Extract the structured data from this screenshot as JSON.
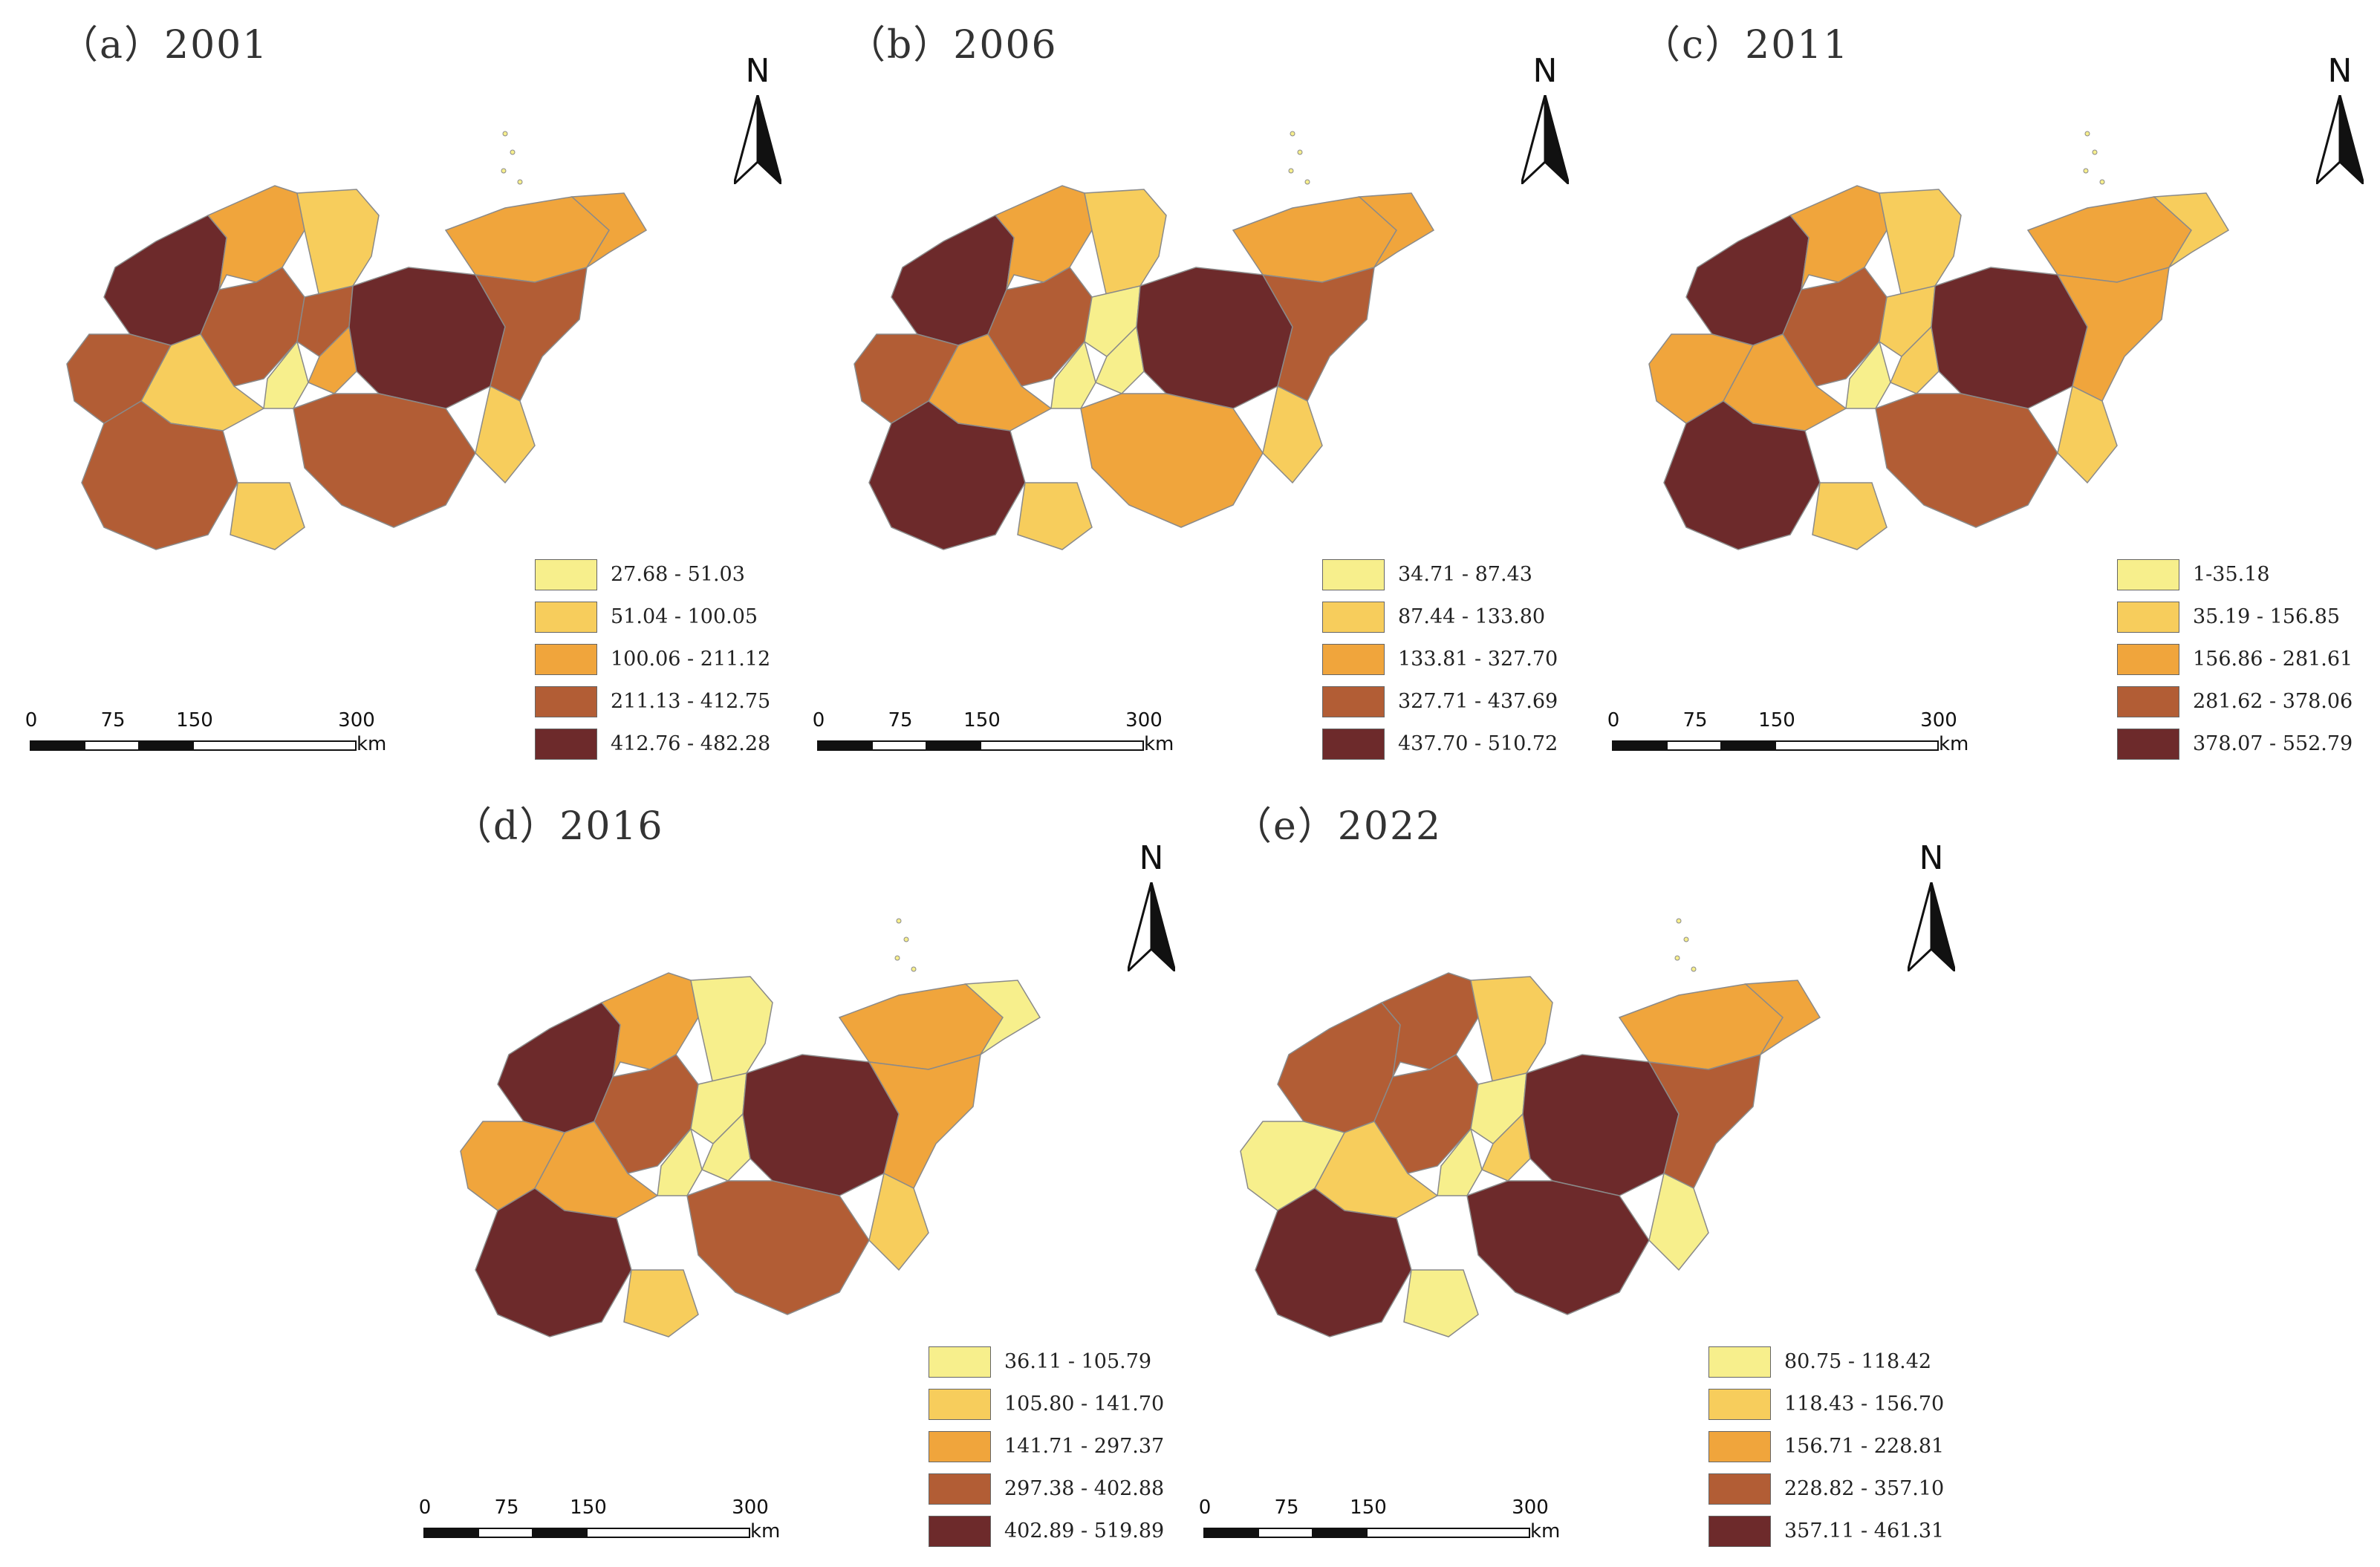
{
  "common": {
    "north_label": "N",
    "scale": {
      "ticks": [
        "0",
        "75",
        "150",
        "300"
      ],
      "unit": "km"
    }
  },
  "colors": {
    "c1": "#f7ef8c",
    "c2": "#f7cd5c",
    "c3": "#f0a53c",
    "c4": "#b25d35",
    "c5": "#6d2a2b",
    "outline": "#8a8a8a"
  },
  "panels": [
    {
      "title": "（a）2001",
      "legend": [
        "27.68 - 51.03",
        "51.04 - 100.05",
        "100.06 - 211.12",
        "211.13 - 412.75",
        "412.76 - 482.28"
      ],
      "region_classes": [
        5,
        3,
        2,
        3,
        4,
        4,
        3,
        1,
        2,
        5,
        4,
        3,
        4,
        4,
        4,
        2,
        2
      ]
    },
    {
      "title": "（b）2006",
      "legend": [
        "34.71 - 87.43",
        "87.44 - 133.80",
        "133.81 - 327.70",
        "327.71 - 437.69",
        "437.70 - 510.72"
      ],
      "region_classes": [
        5,
        3,
        2,
        3,
        4,
        1,
        1,
        1,
        3,
        5,
        4,
        3,
        4,
        3,
        5,
        2,
        2
      ]
    },
    {
      "title": "（c）2011",
      "legend": [
        "1-35.18",
        "35.19 - 156.85",
        "156.86 - 281.61",
        "281.62 - 378.06",
        "378.07 - 552.79"
      ],
      "region_classes": [
        5,
        3,
        2,
        3,
        4,
        2,
        2,
        1,
        3,
        5,
        3,
        2,
        3,
        4,
        5,
        2,
        2
      ]
    },
    {
      "title": "（d）2016",
      "legend": [
        "36.11 - 105.79",
        "105.80 - 141.70",
        "141.71 - 297.37",
        "297.38 - 402.88",
        "402.89 - 519.89"
      ],
      "region_classes": [
        5,
        3,
        1,
        3,
        4,
        1,
        1,
        1,
        3,
        5,
        3,
        1,
        3,
        4,
        5,
        2,
        2
      ]
    },
    {
      "title": "（e）2022",
      "legend": [
        "80.75 - 118.42",
        "118.43 - 156.70",
        "156.71 - 228.81",
        "228.82 - 357.10",
        "357.11 - 461.31"
      ],
      "region_classes": [
        4,
        4,
        2,
        3,
        4,
        1,
        2,
        1,
        2,
        5,
        4,
        3,
        1,
        5,
        5,
        1,
        1
      ]
    }
  ]
}
